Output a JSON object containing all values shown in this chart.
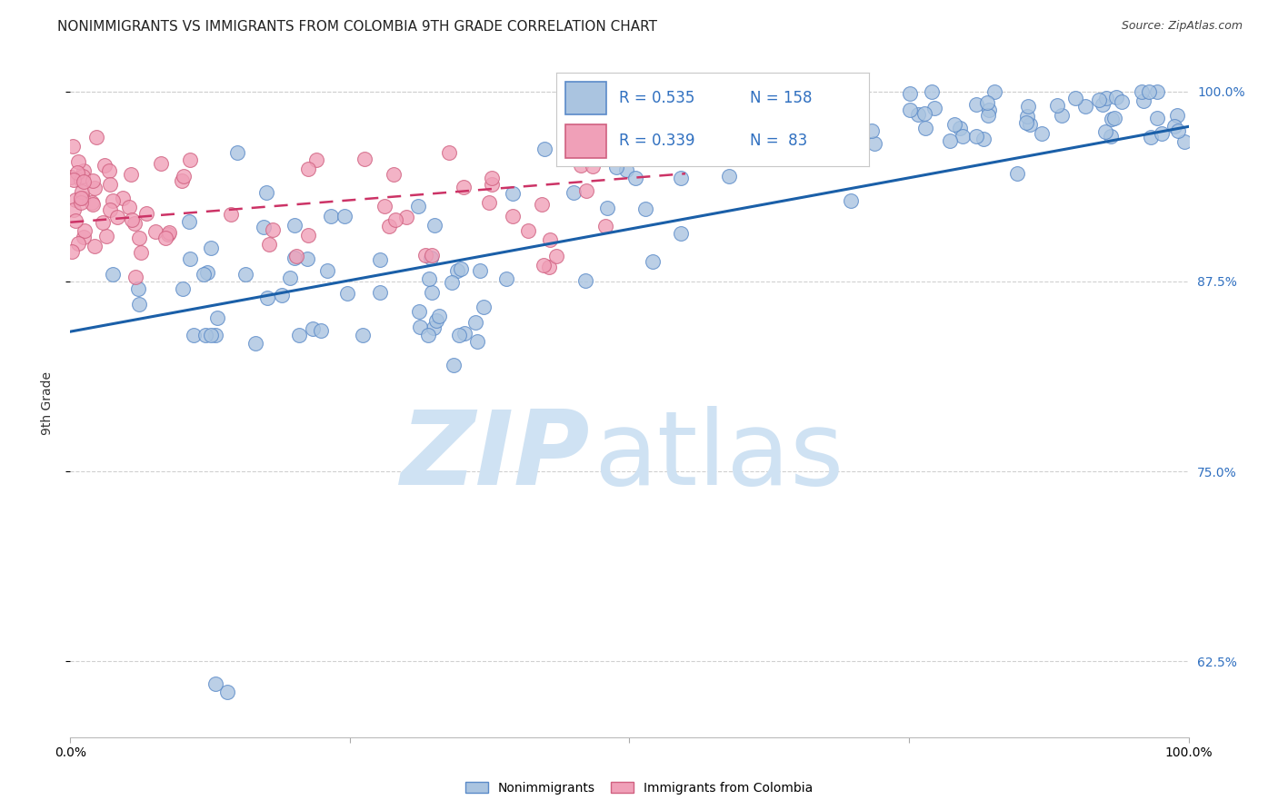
{
  "title": "NONIMMIGRANTS VS IMMIGRANTS FROM COLOMBIA 9TH GRADE CORRELATION CHART",
  "source": "Source: ZipAtlas.com",
  "ylabel": "9th Grade",
  "xlim": [
    0.0,
    1.0
  ],
  "ylim": [
    0.575,
    1.015
  ],
  "yticks": [
    0.625,
    0.75,
    0.875,
    1.0
  ],
  "ytick_labels": [
    "62.5%",
    "75.0%",
    "87.5%",
    "100.0%"
  ],
  "blue_fill": "#aac4e0",
  "blue_edge": "#5a8ac8",
  "pink_fill": "#f0a0b8",
  "pink_edge": "#d06080",
  "blue_line_color": "#1a5fa8",
  "pink_line_color": "#cc3366",
  "label_color": "#3070c0",
  "R_blue": 0.535,
  "N_blue": 158,
  "R_pink": 0.339,
  "N_pink": 83,
  "watermark_color": "#cfe2f3",
  "grid_color": "#d0d0d0",
  "background_color": "#ffffff",
  "title_fontsize": 11,
  "source_fontsize": 9,
  "tick_fontsize": 10,
  "scatter_size": 130,
  "blue_line_x": [
    0.0,
    1.0
  ],
  "blue_line_y": [
    0.842,
    0.977
  ],
  "pink_line_x": [
    0.0,
    0.52
  ],
  "pink_line_y": [
    0.915,
    0.945
  ]
}
